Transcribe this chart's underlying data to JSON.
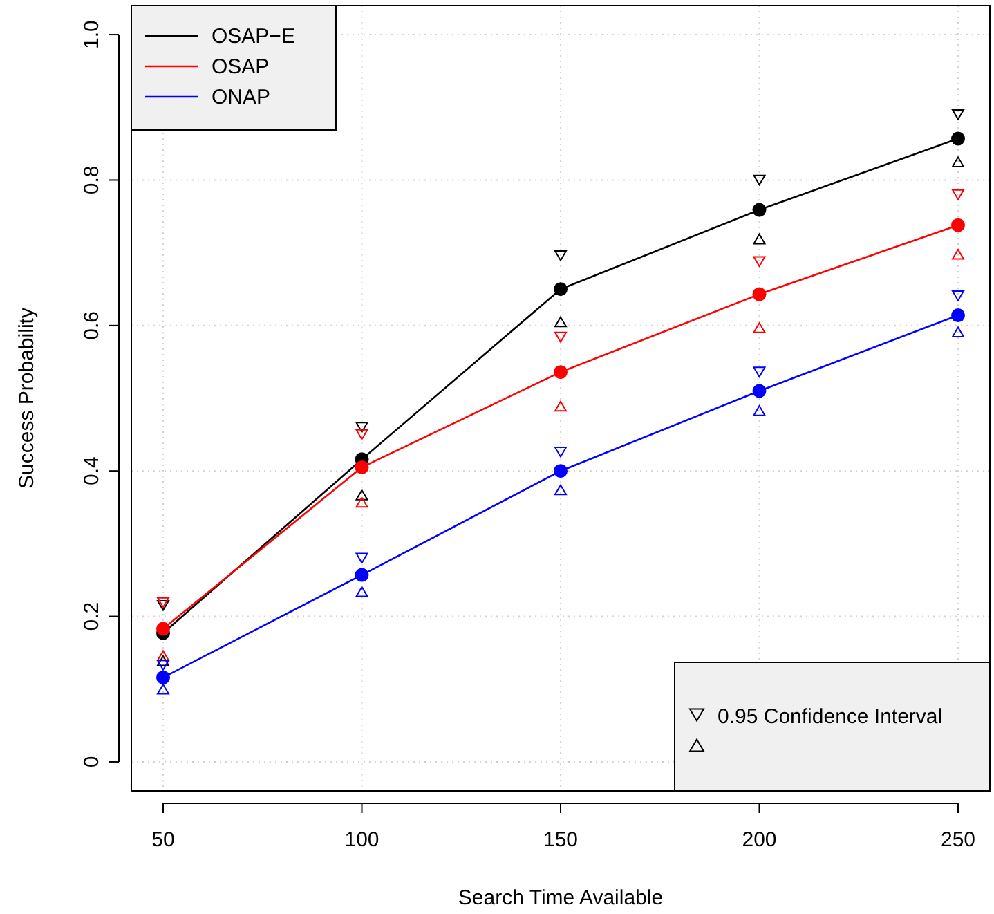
{
  "chart_data": {
    "type": "line",
    "xlabel": "Search Time Available",
    "ylabel": "Success Probability",
    "x": [
      50,
      100,
      150,
      200,
      250
    ],
    "xlim": [
      42,
      258
    ],
    "xticks": [
      50,
      100,
      150,
      200,
      250
    ],
    "ylim": [
      -0.04,
      1.04
    ],
    "yticks": [
      0,
      {
        "value": 0.2,
        "label": "0.2"
      },
      {
        "value": 0.4,
        "label": "0.4"
      },
      {
        "value": 0.6,
        "label": "0.6"
      },
      {
        "value": 0.8,
        "label": "0.8"
      },
      {
        "value": 1,
        "label": "1.0"
      }
    ],
    "grid": true,
    "legend": "top left",
    "marker": "circle",
    "line_style": "solid",
    "annotations": [
      "0.95 Confidence Interval"
    ],
    "series": [
      {
        "name": "OSAP−E",
        "color": "#000000",
        "values": [
          0.177,
          0.416,
          0.65,
          0.759,
          0.857
        ]
      },
      {
        "name": "OSAP",
        "color": "#ff0000",
        "values": [
          0.183,
          0.405,
          0.536,
          0.643,
          0.738
        ]
      },
      {
        "name": "ONAP",
        "color": "#0000ff",
        "values": [
          0.116,
          0.257,
          0.4,
          0.51,
          0.614
        ]
      },
      {
        "type": "scatter",
        "marker": "triangle-down",
        "color": "#000000",
        "values": [
          0.215,
          0.46,
          0.696,
          0.8,
          0.89
        ]
      },
      {
        "type": "scatter",
        "marker": "triangle",
        "color": "#000000",
        "values": [
          0.139,
          0.367,
          0.605,
          0.719,
          0.825
        ]
      },
      {
        "type": "scatter",
        "marker": "triangle-down",
        "color": "#ff0000",
        "values": [
          0.219,
          0.45,
          0.584,
          0.688,
          0.78
        ]
      },
      {
        "type": "scatter",
        "marker": "triangle",
        "color": "#ff0000",
        "values": [
          0.146,
          0.357,
          0.489,
          0.597,
          0.698
        ]
      },
      {
        "type": "scatter",
        "marker": "triangle-down",
        "color": "#0000ff",
        "values": [
          0.133,
          0.28,
          0.426,
          0.536,
          0.641
        ]
      },
      {
        "type": "scatter",
        "marker": "triangle",
        "color": "#0000ff",
        "values": [
          0.1,
          0.234,
          0.374,
          0.483,
          0.591
        ]
      }
    ]
  }
}
